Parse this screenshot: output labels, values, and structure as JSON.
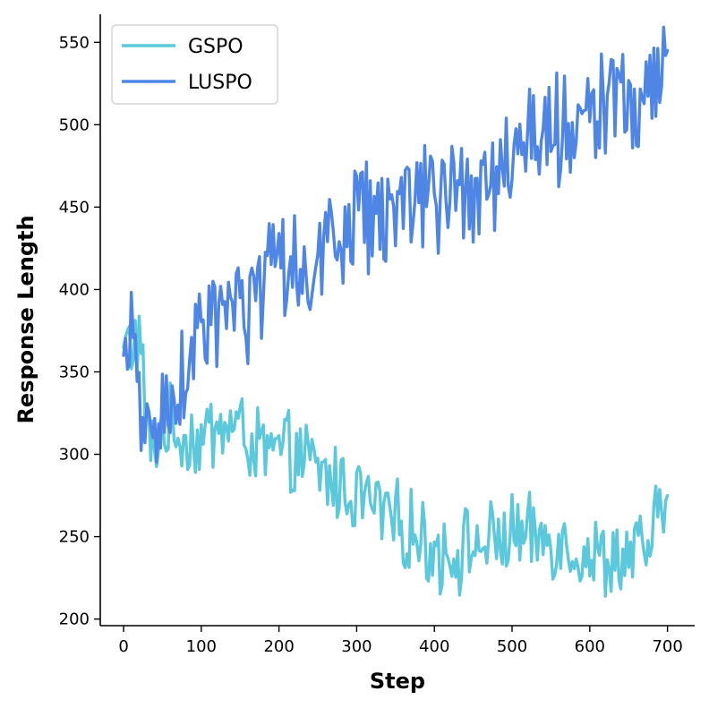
{
  "chart_data": {
    "type": "line",
    "title": "",
    "xlabel": "Step",
    "ylabel": "Response Length",
    "xlim": [
      -30,
      735
    ],
    "ylim": [
      196,
      567
    ],
    "xticks": [
      0,
      100,
      200,
      300,
      400,
      500,
      600,
      700
    ],
    "yticks": [
      200,
      250,
      300,
      350,
      400,
      450,
      500,
      550
    ],
    "grid": false,
    "legend_position": "top-left",
    "series": [
      {
        "name": "GSPO",
        "color": "#5BC8DC",
        "x": [
          0,
          20,
          35,
          50,
          75,
          100,
          125,
          150,
          175,
          200,
          225,
          250,
          275,
          300,
          325,
          350,
          375,
          400,
          425,
          450,
          475,
          500,
          525,
          550,
          575,
          600,
          625,
          650,
          675,
          700
        ],
        "y": [
          365,
          370,
          298,
          318,
          312,
          308,
          318,
          315,
          302,
          300,
          298,
          290,
          282,
          276,
          268,
          258,
          252,
          242,
          240,
          245,
          246,
          252,
          248,
          250,
          245,
          238,
          236,
          238,
          242,
          275
        ]
      },
      {
        "name": "LUSPO",
        "color": "#4F86E6",
        "x": [
          0,
          15,
          25,
          40,
          60,
          80,
          100,
          125,
          150,
          175,
          200,
          225,
          250,
          275,
          300,
          325,
          350,
          375,
          400,
          425,
          450,
          475,
          500,
          525,
          550,
          575,
          600,
          625,
          650,
          675,
          700
        ],
        "y": [
          360,
          362,
          310,
          315,
          335,
          355,
          370,
          385,
          385,
          395,
          410,
          415,
          420,
          435,
          440,
          445,
          448,
          450,
          452,
          460,
          462,
          470,
          480,
          490,
          495,
          500,
          505,
          508,
          512,
          515,
          545
        ]
      }
    ]
  }
}
